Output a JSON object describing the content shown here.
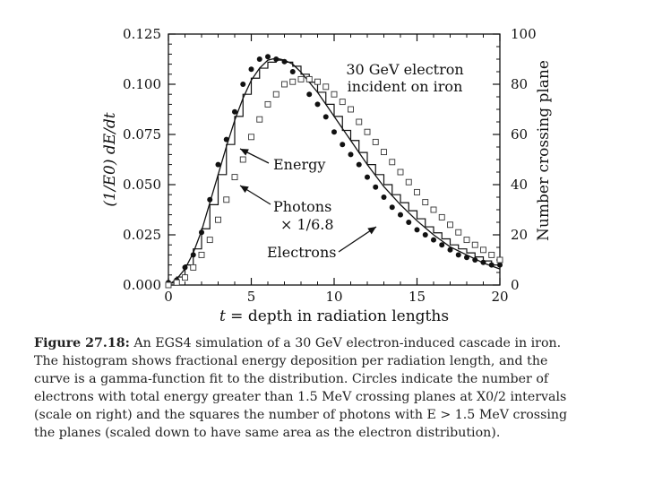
{
  "chart_data": {
    "type": "line",
    "title": "",
    "annotation": "30 GeV electron\nincident on iron",
    "xlabel": "t = depth in radiation lengths",
    "ylabel": "(1/E0) dE/dt",
    "y2label": "Number crossing plane",
    "xlim": [
      0,
      20
    ],
    "ylim": [
      0,
      0.125
    ],
    "y2lim": [
      0,
      100
    ],
    "x_ticks": [
      "0",
      "5",
      "10",
      "15",
      "20"
    ],
    "y_ticks": [
      "0.000",
      "0.025",
      "0.050",
      "0.075",
      "0.100",
      "0.125"
    ],
    "y2_ticks": [
      "0",
      "20",
      "40",
      "60",
      "80",
      "100"
    ],
    "series": [
      {
        "name": "Energy",
        "kind": "histogram",
        "axis": "left",
        "edges": [
          0,
          0.5,
          1,
          1.5,
          2,
          2.5,
          3,
          3.5,
          4,
          4.5,
          5,
          5.5,
          6,
          6.5,
          7,
          7.5,
          8,
          8.5,
          9,
          9.5,
          10,
          10.5,
          11,
          11.5,
          12,
          12.5,
          13,
          13.5,
          14,
          14.5,
          15,
          15.5,
          16,
          16.5,
          17,
          17.5,
          18,
          18.5,
          19,
          19.5,
          20
        ],
        "values": [
          0.001,
          0.004,
          0.01,
          0.018,
          0.028,
          0.04,
          0.055,
          0.07,
          0.084,
          0.095,
          0.103,
          0.108,
          0.111,
          0.112,
          0.111,
          0.109,
          0.105,
          0.101,
          0.096,
          0.09,
          0.084,
          0.077,
          0.072,
          0.066,
          0.06,
          0.055,
          0.05,
          0.045,
          0.041,
          0.037,
          0.033,
          0.029,
          0.026,
          0.023,
          0.02,
          0.018,
          0.016,
          0.014,
          0.012,
          0.01
        ]
      },
      {
        "name": "Gamma-function fit",
        "kind": "curve",
        "axis": "left",
        "x": [
          0,
          0.5,
          1,
          1.5,
          2,
          2.5,
          3,
          3.5,
          4,
          4.5,
          5,
          5.5,
          6,
          6.5,
          7,
          7.5,
          8,
          8.5,
          9,
          9.5,
          10,
          11,
          12,
          13,
          14,
          15,
          16,
          17,
          18,
          19,
          20
        ],
        "y": [
          0.0,
          0.003,
          0.008,
          0.016,
          0.027,
          0.041,
          0.055,
          0.069,
          0.082,
          0.093,
          0.102,
          0.108,
          0.112,
          0.113,
          0.112,
          0.11,
          0.106,
          0.101,
          0.096,
          0.09,
          0.084,
          0.072,
          0.06,
          0.049,
          0.04,
          0.032,
          0.025,
          0.019,
          0.015,
          0.011,
          0.008
        ]
      },
      {
        "name": "Electrons",
        "kind": "markers-circle",
        "axis": "right",
        "x": [
          0,
          0.5,
          1,
          1.5,
          2,
          2.5,
          3,
          3.5,
          4,
          4.5,
          5,
          5.5,
          6,
          6.5,
          7,
          7.5,
          8,
          8.5,
          9,
          9.5,
          10,
          10.5,
          11,
          11.5,
          12,
          12.5,
          13,
          13.5,
          14,
          14.5,
          15,
          15.5,
          16,
          16.5,
          17,
          17.5,
          18,
          18.5,
          19,
          19.5,
          20
        ],
        "y": [
          1,
          2,
          7,
          12,
          21,
          34,
          48,
          58,
          69,
          80,
          86,
          90,
          91,
          90,
          89,
          85,
          82,
          76,
          72,
          67,
          61,
          56,
          52,
          48,
          43,
          39,
          35,
          31,
          28,
          25,
          22,
          20,
          18,
          16,
          14,
          12,
          11,
          10,
          9,
          8,
          8
        ]
      },
      {
        "name": "Photons × 1/6.8",
        "kind": "markers-square",
        "axis": "right",
        "x": [
          0,
          0.5,
          1,
          1.5,
          2,
          2.5,
          3,
          3.5,
          4,
          4.5,
          5,
          5.5,
          6,
          6.5,
          7,
          7.5,
          8,
          8.5,
          9,
          9.5,
          10,
          10.5,
          11,
          11.5,
          12,
          12.5,
          13,
          13.5,
          14,
          14.5,
          15,
          15.5,
          16,
          16.5,
          17,
          17.5,
          18,
          18.5,
          19,
          19.5,
          20
        ],
        "y": [
          0,
          1,
          3,
          7,
          12,
          18,
          26,
          34,
          43,
          50,
          59,
          66,
          72,
          76,
          80,
          81,
          82,
          82,
          81,
          79,
          76,
          73,
          70,
          65,
          61,
          57,
          53,
          49,
          45,
          41,
          37,
          33,
          30,
          27,
          24,
          21,
          18,
          16,
          14,
          12,
          10
        ]
      }
    ],
    "labels": {
      "energy": "Energy",
      "photons_line1": "Photons",
      "photons_line2": "× 1/6.8",
      "electrons": "Electrons"
    }
  },
  "caption": {
    "figure_label": "Figure 27.18:",
    "lines": [
      "An EGS4 simulation of a 30 GeV electron-induced cascade in iron.",
      "The histogram shows fractional energy deposition per radiation length, and the",
      "curve is a gamma-function fit to the distribution. Circles indicate the number of",
      "electrons with total energy greater than 1.5 MeV crossing planes at X0/2 intervals",
      "(scale on right) and the squares the number of photons with E > 1.5 MeV crossing",
      "the planes (scaled down to have same area as the electron distribution)."
    ]
  }
}
